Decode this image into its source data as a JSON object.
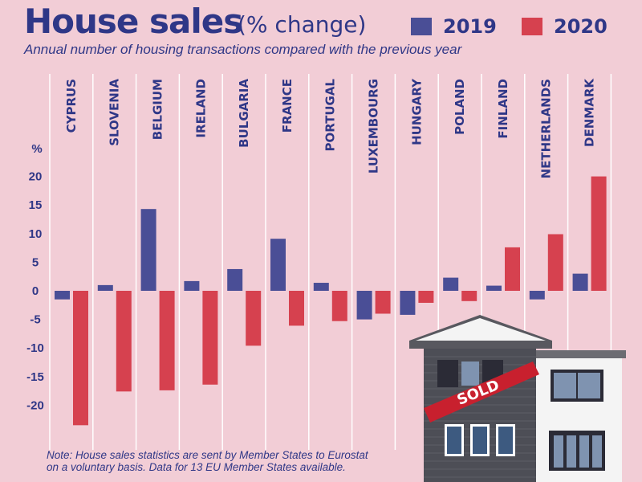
{
  "header": {
    "title": "House sales",
    "title_unit": "(% change)",
    "subtitle": "Annual number of housing transactions compared with the previous year"
  },
  "note": {
    "line1": "Note: House sales statistics are sent by Member States to Eurostat",
    "line2": "on a voluntary basis. Data for 13 EU Member States available."
  },
  "house": {
    "sign_text": "SOLD"
  },
  "colors": {
    "2019": "#4a4e96",
    "2020": "#d6414f",
    "background": "#f2cdd6",
    "text": "#2f3787"
  },
  "chart_data": {
    "type": "bar",
    "title": "House sales",
    "subtitle": "Annual number of housing transactions compared with the previous year",
    "ylabel": "%",
    "ylim": [
      -25,
      20
    ],
    "yticks": [
      20,
      15,
      10,
      5,
      0,
      -5,
      -10,
      -15,
      -20
    ],
    "grid": false,
    "legend_position": "top-right",
    "categories": [
      "CYPRUS",
      "SLOVENIA",
      "BELGIUM",
      "IRELAND",
      "BULGARIA",
      "FRANCE",
      "PORTUGAL",
      "LUXEMBOURG",
      "HUNGARY",
      "POLAND",
      "FINLAND",
      "NETHERLANDS",
      "DENMARK"
    ],
    "series": [
      {
        "name": "2019",
        "values": [
          -1.5,
          1.0,
          14.3,
          1.7,
          3.8,
          9.1,
          1.4,
          -5.0,
          -4.2,
          2.3,
          0.9,
          -1.5,
          3.0
        ]
      },
      {
        "name": "2020",
        "values": [
          -23.5,
          -17.6,
          -17.4,
          -16.4,
          -9.6,
          -6.1,
          -5.3,
          -4.0,
          -2.1,
          -1.8,
          7.6,
          9.9,
          20.0
        ]
      }
    ]
  }
}
